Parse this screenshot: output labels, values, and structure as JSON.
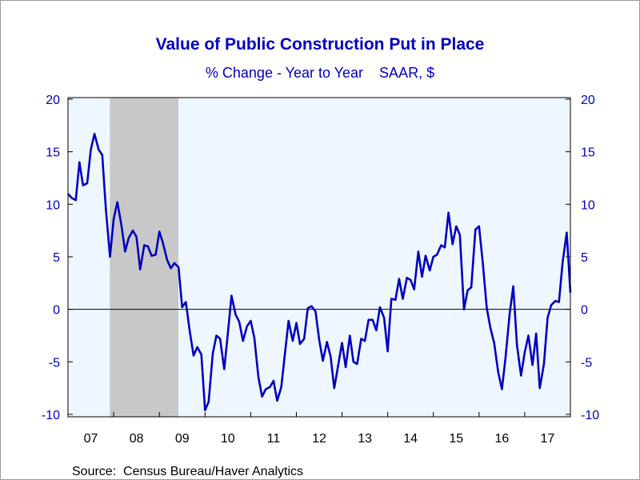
{
  "chart_data": {
    "type": "line",
    "title": "Value of Public Construction Put in Place",
    "subtitle": "% Change - Year to Year    SAAR, $",
    "source": "Source:  Census Bureau/Haver Analytics",
    "x_tick_labels": [
      "07",
      "08",
      "09",
      "10",
      "11",
      "12",
      "13",
      "14",
      "15",
      "16",
      "17"
    ],
    "x_range": [
      2007.0,
      2017.9
    ],
    "y_ticks": [
      20,
      15,
      10,
      5,
      0,
      -5,
      -10
    ],
    "ylim": [
      -10,
      20
    ],
    "recession_shade": [
      2007.917,
      2009.417
    ],
    "colors": {
      "line": "#0000c0",
      "text": "#0000c0",
      "plot_bg": "#eef6ff",
      "shade": "#c8c8c8"
    },
    "series": [
      {
        "values": [
          [
            2007.0,
            11.0
          ],
          [
            2007.08,
            10.6
          ],
          [
            2007.17,
            10.4
          ],
          [
            2007.25,
            14.0
          ],
          [
            2007.33,
            11.8
          ],
          [
            2007.42,
            12.0
          ],
          [
            2007.5,
            15.2
          ],
          [
            2007.58,
            16.7
          ],
          [
            2007.67,
            15.2
          ],
          [
            2007.75,
            14.7
          ],
          [
            2007.83,
            9.5
          ],
          [
            2007.92,
            5.0
          ],
          [
            2008.0,
            8.6
          ],
          [
            2008.08,
            10.2
          ],
          [
            2008.17,
            8.0
          ],
          [
            2008.25,
            5.5
          ],
          [
            2008.33,
            6.8
          ],
          [
            2008.42,
            7.5
          ],
          [
            2008.5,
            6.9
          ],
          [
            2008.58,
            3.8
          ],
          [
            2008.67,
            6.1
          ],
          [
            2008.75,
            6.0
          ],
          [
            2008.83,
            5.1
          ],
          [
            2008.92,
            5.2
          ],
          [
            2009.0,
            7.4
          ],
          [
            2009.08,
            6.3
          ],
          [
            2009.17,
            4.7
          ],
          [
            2009.25,
            3.9
          ],
          [
            2009.33,
            4.4
          ],
          [
            2009.42,
            4.0
          ],
          [
            2009.5,
            0.2
          ],
          [
            2009.58,
            0.7
          ],
          [
            2009.67,
            -2.2
          ],
          [
            2009.75,
            -4.4
          ],
          [
            2009.83,
            -3.6
          ],
          [
            2009.92,
            -4.3
          ],
          [
            2010.0,
            -9.6
          ],
          [
            2010.08,
            -8.8
          ],
          [
            2010.17,
            -4.2
          ],
          [
            2010.25,
            -2.5
          ],
          [
            2010.33,
            -2.8
          ],
          [
            2010.42,
            -5.7
          ],
          [
            2010.5,
            -2.3
          ],
          [
            2010.58,
            1.3
          ],
          [
            2010.67,
            -0.5
          ],
          [
            2010.75,
            -1.2
          ],
          [
            2010.83,
            -3.0
          ],
          [
            2010.92,
            -1.6
          ],
          [
            2011.0,
            -1.1
          ],
          [
            2011.08,
            -2.7
          ],
          [
            2011.17,
            -6.5
          ],
          [
            2011.25,
            -8.3
          ],
          [
            2011.33,
            -7.6
          ],
          [
            2011.42,
            -7.4
          ],
          [
            2011.5,
            -6.8
          ],
          [
            2011.58,
            -8.7
          ],
          [
            2011.67,
            -7.4
          ],
          [
            2011.75,
            -4.2
          ],
          [
            2011.83,
            -1.1
          ],
          [
            2011.92,
            -3.0
          ],
          [
            2012.0,
            -1.3
          ],
          [
            2012.08,
            -3.3
          ],
          [
            2012.17,
            -2.8
          ],
          [
            2012.25,
            0.1
          ],
          [
            2012.33,
            0.3
          ],
          [
            2012.42,
            -0.2
          ],
          [
            2012.5,
            -2.9
          ],
          [
            2012.58,
            -4.9
          ],
          [
            2012.67,
            -3.1
          ],
          [
            2012.75,
            -4.5
          ],
          [
            2012.83,
            -7.5
          ],
          [
            2012.92,
            -5.2
          ],
          [
            2013.0,
            -3.2
          ],
          [
            2013.08,
            -5.5
          ],
          [
            2013.17,
            -2.5
          ],
          [
            2013.25,
            -5.0
          ],
          [
            2013.33,
            -5.2
          ],
          [
            2013.42,
            -2.8
          ],
          [
            2013.5,
            -3.0
          ],
          [
            2013.58,
            -1.0
          ],
          [
            2013.67,
            -1.0
          ],
          [
            2013.75,
            -2.0
          ],
          [
            2013.83,
            0.2
          ],
          [
            2013.92,
            -0.8
          ],
          [
            2014.0,
            -4.0
          ],
          [
            2014.08,
            1.0
          ],
          [
            2014.17,
            0.9
          ],
          [
            2014.25,
            2.9
          ],
          [
            2014.33,
            1.0
          ],
          [
            2014.42,
            3.0
          ],
          [
            2014.5,
            2.8
          ],
          [
            2014.58,
            1.9
          ],
          [
            2014.67,
            5.5
          ],
          [
            2014.75,
            3.1
          ],
          [
            2014.83,
            5.1
          ],
          [
            2014.92,
            3.7
          ],
          [
            2015.0,
            5.0
          ],
          [
            2015.08,
            5.2
          ],
          [
            2015.17,
            6.1
          ],
          [
            2015.25,
            5.9
          ],
          [
            2015.33,
            9.2
          ],
          [
            2015.42,
            6.2
          ],
          [
            2015.5,
            7.9
          ],
          [
            2015.58,
            7.1
          ],
          [
            2015.67,
            0.0
          ],
          [
            2015.75,
            1.8
          ],
          [
            2015.83,
            2.1
          ],
          [
            2015.92,
            7.6
          ],
          [
            2016.0,
            7.9
          ],
          [
            2016.08,
            4.5
          ],
          [
            2016.17,
            0.1
          ],
          [
            2016.25,
            -1.8
          ],
          [
            2016.33,
            -3.2
          ],
          [
            2016.42,
            -6.0
          ],
          [
            2016.5,
            -7.6
          ],
          [
            2016.58,
            -4.6
          ],
          [
            2016.67,
            -0.4
          ],
          [
            2016.75,
            2.2
          ],
          [
            2016.83,
            -3.4
          ],
          [
            2016.92,
            -6.3
          ],
          [
            2017.0,
            -4.1
          ],
          [
            2017.08,
            -2.5
          ],
          [
            2017.17,
            -5.3
          ],
          [
            2017.25,
            -2.3
          ],
          [
            2017.33,
            -7.5
          ],
          [
            2017.42,
            -5.2
          ],
          [
            2017.5,
            -0.8
          ],
          [
            2017.58,
            0.4
          ],
          [
            2017.67,
            0.8
          ],
          [
            2017.75,
            0.7
          ],
          [
            2017.83,
            4.5
          ],
          [
            2017.92,
            7.3
          ],
          [
            2018.0,
            1.6
          ]
        ]
      }
    ]
  }
}
